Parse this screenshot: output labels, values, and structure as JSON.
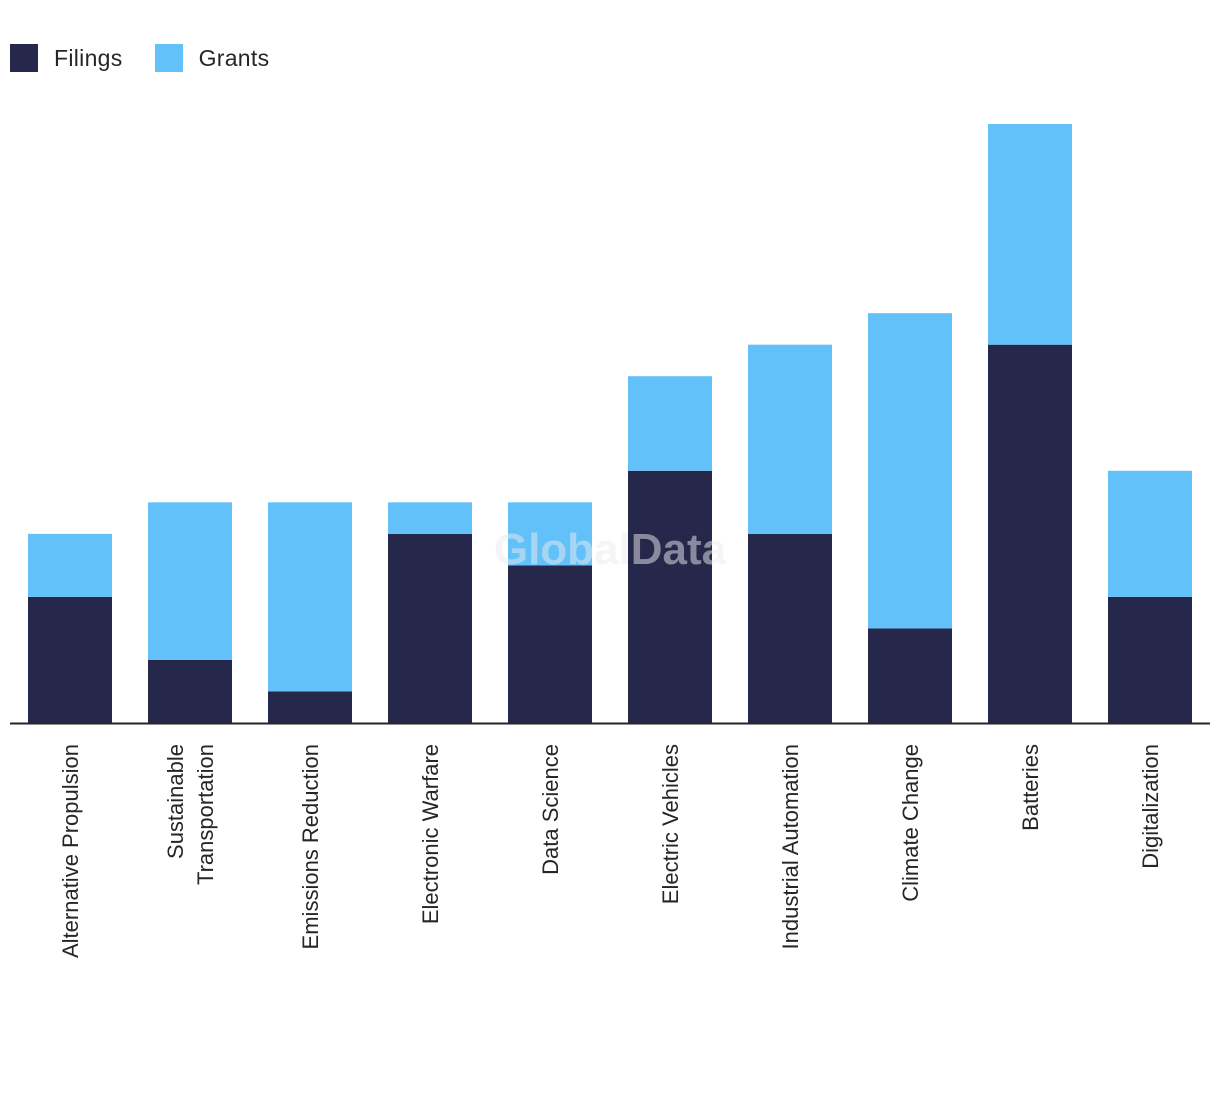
{
  "legend": {
    "filings_label": "Filings",
    "grants_label": "Grants"
  },
  "watermark": "GlobalData",
  "colors": {
    "filings": "#26284b",
    "grants": "#62c1f9",
    "axis": "#262626"
  },
  "chart_data": {
    "type": "bar",
    "stacked": true,
    "categories": [
      [
        "Alternative Propulsion"
      ],
      [
        "Sustainable",
        "Transportation"
      ],
      [
        "Emissions Reduction"
      ],
      [
        "Electronic Warfare"
      ],
      [
        "Data Science"
      ],
      [
        "Electric Vehicles"
      ],
      [
        "Industrial Automation"
      ],
      [
        "Climate Change"
      ],
      [
        "Batteries"
      ],
      [
        "Digitalization"
      ]
    ],
    "series": [
      {
        "name": "Filings",
        "values": [
          4,
          2,
          1,
          6,
          5,
          8,
          6,
          3,
          12,
          4
        ]
      },
      {
        "name": "Grants",
        "values": [
          2,
          5,
          6,
          1,
          2,
          3,
          6,
          10,
          7,
          4
        ]
      }
    ],
    "ylim": [
      0,
      19
    ],
    "grid": false,
    "legend_position": "top-left"
  }
}
